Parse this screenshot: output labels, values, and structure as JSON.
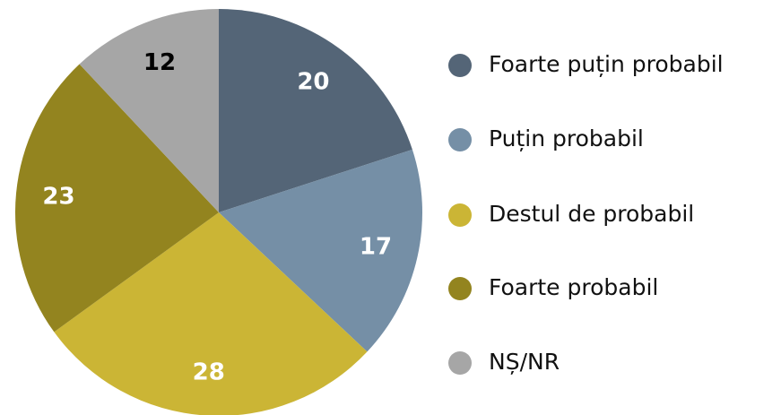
{
  "chart_data": {
    "type": "pie",
    "categories": [
      "Foarte puțin probabil",
      "Puțin probabil",
      "Destul de probabil",
      "Foarte probabil",
      "NȘ/NR"
    ],
    "values": [
      20,
      17,
      28,
      23,
      12
    ],
    "colors": [
      "#546577",
      "#758fa6",
      "#cbb535",
      "#93841f",
      "#a6a6a6"
    ],
    "label_colors": [
      "#ffffff",
      "#ffffff",
      "#ffffff",
      "#ffffff",
      "#000000"
    ],
    "legend": "right"
  }
}
